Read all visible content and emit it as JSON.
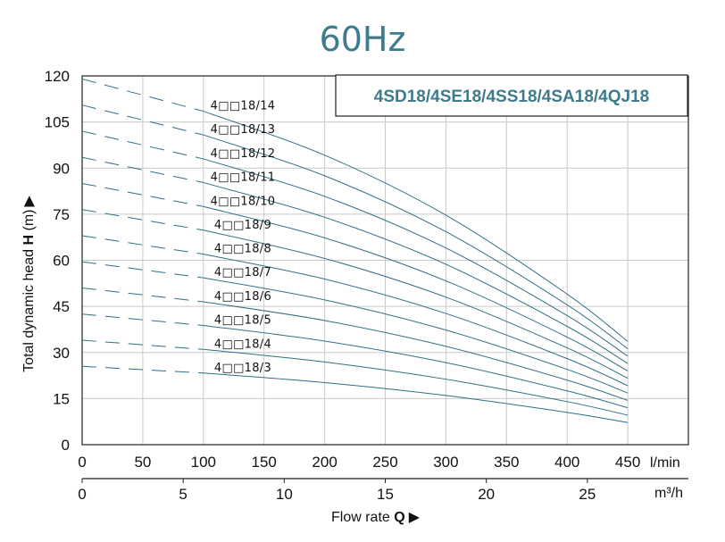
{
  "title": "60Hz",
  "model_label": "4SD18/4SE18/4SS18/4SA18/4QJ18",
  "chart_data": {
    "type": "line",
    "x_unit_primary": "l/min",
    "x_unit_secondary": "m³/h",
    "xlim": [
      0,
      500
    ],
    "ylim": [
      0,
      120
    ],
    "x_ticks_primary": [
      "0",
      "50",
      "100",
      "150",
      "200",
      "250",
      "300",
      "350",
      "400",
      "450"
    ],
    "x_ticks_secondary": [
      "0",
      "5",
      "10",
      "15",
      "20",
      "25"
    ],
    "y_ticks": [
      "0",
      "15",
      "30",
      "45",
      "60",
      "75",
      "90",
      "105",
      "120"
    ],
    "ylabel_prefix": "Total dynamic head ",
    "ylabel_symbol": "H",
    "ylabel_unit": " (m)",
    "ylabel_arrow": "▶",
    "xlabel_prefix": "Flow rate ",
    "xlabel_symbol": "Q",
    "xlabel_arrow": "▶",
    "grid": true,
    "line_color": "#2f6f86",
    "dashed_until_x": 100,
    "series": [
      {
        "name": "4□□18/3",
        "x": [
          0,
          100,
          200,
          300,
          400,
          450
        ],
        "y": [
          25.5,
          23.3,
          20.2,
          16.0,
          10.5,
          7.2
        ]
      },
      {
        "name": "4□□18/4",
        "x": [
          0,
          100,
          200,
          300,
          400,
          450
        ],
        "y": [
          34.0,
          31.0,
          26.9,
          21.3,
          14.0,
          9.6
        ]
      },
      {
        "name": "4□□18/5",
        "x": [
          0,
          100,
          200,
          300,
          400,
          450
        ],
        "y": [
          42.5,
          38.8,
          33.7,
          26.7,
          17.5,
          12.0
        ]
      },
      {
        "name": "4□□18/6",
        "x": [
          0,
          100,
          200,
          300,
          400,
          450
        ],
        "y": [
          51.0,
          46.5,
          40.4,
          32.0,
          21.0,
          14.4
        ]
      },
      {
        "name": "4□□18/7",
        "x": [
          0,
          100,
          200,
          300,
          400,
          450
        ],
        "y": [
          59.5,
          54.3,
          47.1,
          37.3,
          24.5,
          16.8
        ]
      },
      {
        "name": "4□□18/8",
        "x": [
          0,
          100,
          200,
          300,
          400,
          450
        ],
        "y": [
          68.0,
          62.0,
          53.9,
          42.7,
          28.0,
          19.2
        ]
      },
      {
        "name": "4□□18/9",
        "x": [
          0,
          100,
          200,
          300,
          400,
          450
        ],
        "y": [
          76.5,
          69.8,
          60.6,
          48.0,
          31.5,
          21.6
        ]
      },
      {
        "name": "4□□18/10",
        "x": [
          0,
          100,
          200,
          300,
          400,
          450
        ],
        "y": [
          85.0,
          77.5,
          67.3,
          53.3,
          35.0,
          24.0
        ]
      },
      {
        "name": "4□□18/11",
        "x": [
          0,
          100,
          200,
          300,
          400,
          450
        ],
        "y": [
          93.5,
          85.3,
          74.0,
          58.7,
          38.5,
          26.4
        ]
      },
      {
        "name": "4□□18/12",
        "x": [
          0,
          100,
          200,
          300,
          400,
          450
        ],
        "y": [
          102.0,
          93.0,
          80.8,
          64.0,
          42.0,
          28.8
        ]
      },
      {
        "name": "4□□18/13",
        "x": [
          0,
          100,
          200,
          300,
          400,
          450
        ],
        "y": [
          110.5,
          100.8,
          87.5,
          69.3,
          45.5,
          31.2
        ]
      },
      {
        "name": "4□□18/14",
        "x": [
          0,
          100,
          200,
          300,
          400,
          450
        ],
        "y": [
          119.0,
          108.5,
          94.2,
          74.7,
          49.0,
          33.6
        ]
      }
    ]
  }
}
